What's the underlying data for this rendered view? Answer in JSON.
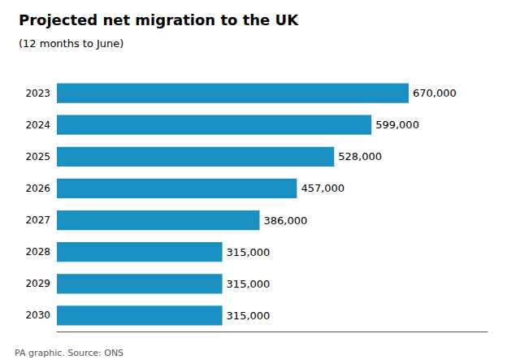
{
  "chart_data": {
    "type": "bar",
    "orientation": "horizontal",
    "title": "Projected net migration to the UK",
    "subtitle": "(12 months to June)",
    "annotation": "PA graphic. Source: ONS",
    "categories": [
      "2023",
      "2024",
      "2025",
      "2026",
      "2027",
      "2028",
      "2029",
      "2030"
    ],
    "values": [
      670000,
      599000,
      528000,
      457000,
      386000,
      315000,
      315000,
      315000
    ],
    "value_labels": [
      "670,000",
      "599,000",
      "528,000",
      "457,000",
      "386,000",
      "315,000",
      "315,000",
      "315,000"
    ],
    "color": "#1a8fc1",
    "xlim": [
      0,
      820000
    ],
    "grid": false,
    "data_labels": true,
    "tick_labels": "y"
  }
}
